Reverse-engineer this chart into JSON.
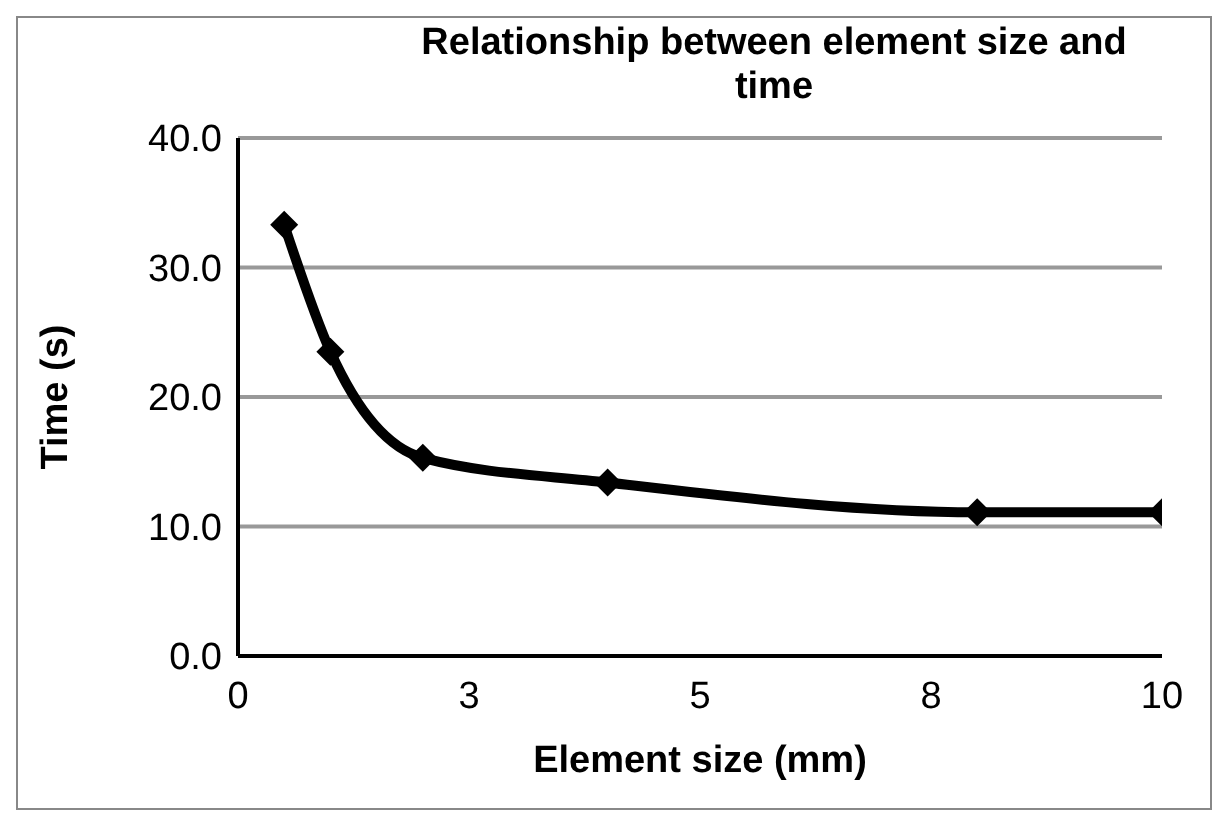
{
  "chart_data": {
    "type": "line",
    "title": "Relationship between element size and time",
    "xlabel": "Element size (mm)",
    "ylabel": "Time (s)",
    "x": [
      0.5,
      1,
      2,
      4,
      8,
      10
    ],
    "series": [
      {
        "color": "#000000",
        "values": [
          33.3,
          23.5,
          15.3,
          13.4,
          11.1,
          11.1
        ]
      }
    ],
    "xlim": [
      0,
      10
    ],
    "xticks": [
      0,
      {
        "value": 2.5,
        "label": "3"
      },
      5,
      {
        "value": 7.5,
        "label": "8"
      },
      10
    ],
    "ylim": [
      0,
      40
    ],
    "yticks": [
      {
        "value": 0,
        "label": "0.0"
      },
      {
        "value": 10,
        "label": "10.0"
      },
      {
        "value": 20,
        "label": "20.0"
      },
      {
        "value": 30,
        "label": "30.0"
      },
      {
        "value": 40,
        "label": "40.0"
      }
    ],
    "grid": "y",
    "marker": "diamond",
    "line_style": "solid",
    "legend": false
  }
}
